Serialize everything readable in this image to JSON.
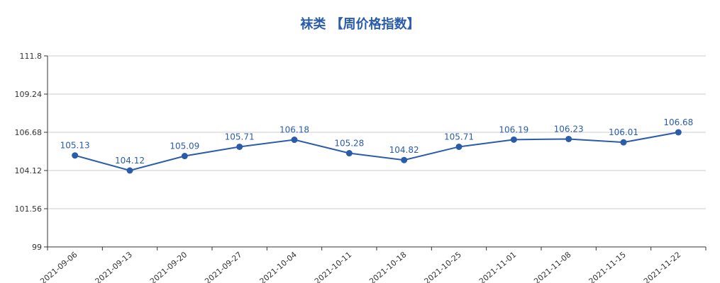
{
  "chart_data": {
    "type": "line",
    "title": "袜类 【周价格指数】",
    "categories": [
      "2021-09-06",
      "2021-09-13",
      "2021-09-20",
      "2021-09-27",
      "2021-10-04",
      "2021-10-11",
      "2021-10-18",
      "2021-10-25",
      "2021-11-01",
      "2021-11-08",
      "2021-11-15",
      "2021-11-22"
    ],
    "values": [
      105.13,
      104.12,
      105.09,
      105.71,
      106.18,
      105.28,
      104.82,
      105.71,
      106.19,
      106.23,
      106.01,
      106.68
    ],
    "ylim": [
      99,
      111.8
    ],
    "yticks": [
      "99",
      "101.56",
      "104.12",
      "106.68",
      "109.24",
      "111.8"
    ],
    "grid": true,
    "data_labels": true,
    "color": "#2a5caa"
  }
}
